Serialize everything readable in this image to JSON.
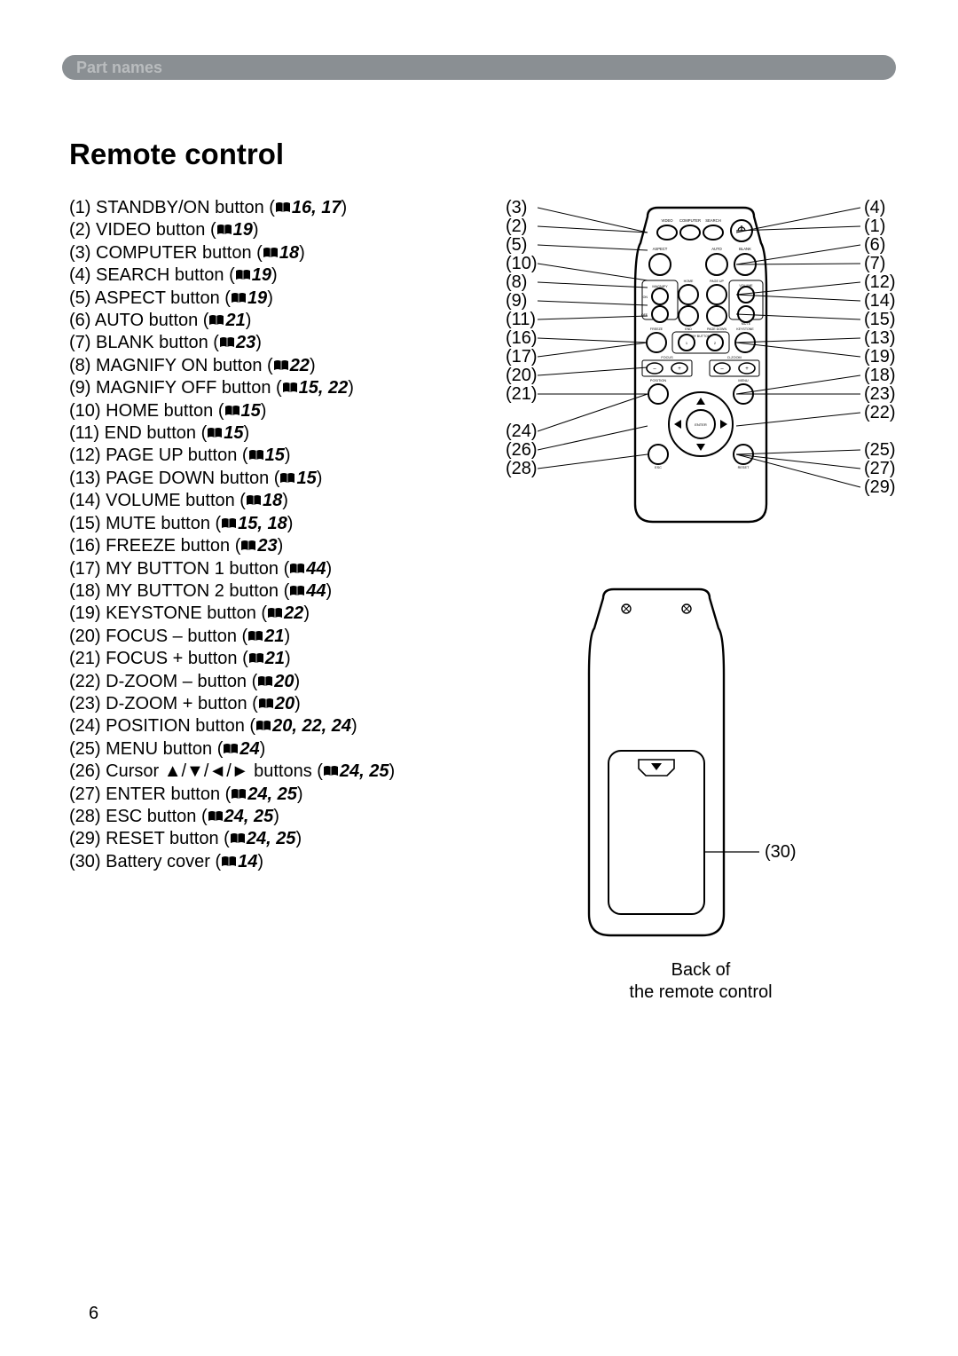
{
  "header": {
    "label": "Part names"
  },
  "title": "Remote control",
  "page_number": "6",
  "back_caption_l1": "Back of",
  "back_caption_l2": "the remote control",
  "items": [
    {
      "n": "(1)",
      "label": "STANDBY/ON button",
      "ref": "16, 17"
    },
    {
      "n": "(2)",
      "label": "VIDEO button",
      "ref": "19"
    },
    {
      "n": "(3)",
      "label": "COMPUTER button",
      "ref": "18"
    },
    {
      "n": "(4)",
      "label": "SEARCH button",
      "ref": "19"
    },
    {
      "n": "(5)",
      "label": "ASPECT button",
      "ref": "19"
    },
    {
      "n": "(6)",
      "label": "AUTO button",
      "ref": "21"
    },
    {
      "n": "(7)",
      "label": "BLANK button",
      "ref": "23"
    },
    {
      "n": "(8)",
      "label": "MAGNIFY ON button",
      "ref": "22"
    },
    {
      "n": "(9)",
      "label": "MAGNIFY OFF button",
      "ref": "15, 22"
    },
    {
      "n": "(10)",
      "label": "HOME button",
      "ref": "15"
    },
    {
      "n": "(11)",
      "label": "END button",
      "ref": "15"
    },
    {
      "n": "(12)",
      "label": "PAGE UP button",
      "ref": "15"
    },
    {
      "n": "(13)",
      "label": "PAGE DOWN button",
      "ref": "15"
    },
    {
      "n": "(14)",
      "label": "VOLUME button",
      "ref": "18"
    },
    {
      "n": "(15)",
      "label": "MUTE button",
      "ref": "15, 18"
    },
    {
      "n": "(16)",
      "label": "FREEZE button",
      "ref": "23"
    },
    {
      "n": "(17)",
      "label": "MY BUTTON 1 button",
      "ref": "44"
    },
    {
      "n": "(18)",
      "label": "MY BUTTON 2 button",
      "ref": "44"
    },
    {
      "n": "(19)",
      "label": "KEYSTONE button",
      "ref": "22"
    },
    {
      "n": "(20)",
      "label": "FOCUS – button",
      "ref": "21"
    },
    {
      "n": "(21)",
      "label": "FOCUS + button",
      "ref": "21"
    },
    {
      "n": "(22)",
      "label": "D-ZOOM – button",
      "ref": "20"
    },
    {
      "n": "(23)",
      "label": "D-ZOOM + button",
      "ref": "20"
    },
    {
      "n": "(24)",
      "label": "POSITION button",
      "ref": "20, 22, 24"
    },
    {
      "n": "(25)",
      "label": "MENU button",
      "ref": "24"
    },
    {
      "n": "(26)",
      "label": "Cursor ▲/▼/◄/► buttons",
      "ref": "24, 25"
    },
    {
      "n": "(27)",
      "label": "ENTER button",
      "ref": "24, 25"
    },
    {
      "n": "(28)",
      "label": "ESC button",
      "ref": "24, 25"
    },
    {
      "n": "(29)",
      "label": "RESET button",
      "ref": "24, 25"
    },
    {
      "n": "(30)",
      "label": "Battery cover",
      "ref": "14"
    }
  ],
  "callouts_left": [
    "(3)",
    "(2)",
    "(5)",
    "(10)",
    "(8)",
    "(9)",
    "(11)",
    "(16)",
    "(17)",
    "(20)",
    "(21)",
    "(24)",
    "(26)",
    "(28)"
  ],
  "callouts_right": [
    "(4)",
    "(1)",
    "(6)",
    "(7)",
    "(12)",
    "(14)",
    "(15)",
    "(13)",
    "(19)",
    "(18)",
    "(23)",
    "(22)",
    "(25)",
    "(27)",
    "(29)"
  ],
  "back_callout": "(30)",
  "remote_labels": {
    "row1": [
      "VIDEO",
      "COMPUTER",
      "SEARCH"
    ],
    "row2": [
      "ASPECT",
      "",
      "AUTO",
      "BLANK"
    ],
    "row3l": [
      "ON",
      "OFF"
    ],
    "magnify": "MAGNIFY",
    "row3m": [
      "HOME",
      "END"
    ],
    "row3r": [
      "PAGE UP",
      "PAGE DOWN"
    ],
    "vol": "VOLUME",
    "mute": "MUTE",
    "row4": [
      "FREEZE",
      "",
      "",
      "KEYSTONE"
    ],
    "mybtn": "MY BUTTON",
    "mybtn12": [
      "1",
      "2"
    ],
    "focus": "FOCUS",
    "dzoom": "D-ZOOM",
    "pos": "POSITION",
    "menu": "MENU",
    "enter": "ENTER",
    "esc": "ESC",
    "reset": "RESET"
  },
  "style": {
    "header_bg": "#8a8f93",
    "header_text": "#b9bcbe",
    "text": "#000000",
    "page_bg": "#ffffff",
    "list_fontsize": 20,
    "title_fontsize": 33
  }
}
